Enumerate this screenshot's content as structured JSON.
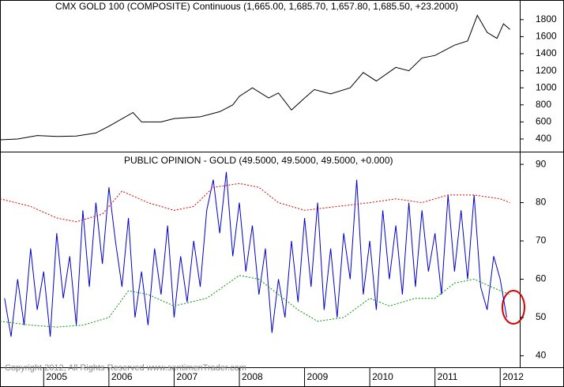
{
  "chart_data": [
    {
      "type": "line",
      "title": "CMX GOLD 100 (COMPOSITE) Continuous (1,665.00, 1,685.70, 1,657.80, 1,685.50, +23.2000)",
      "xlim": [
        2004.33,
        2012.3
      ],
      "ylim": [
        270,
        2030
      ],
      "yticks": [
        400,
        600,
        800,
        1000,
        1200,
        1400,
        1600,
        1800
      ],
      "series": [
        {
          "color": "#000000",
          "x": [
            2004.33,
            2004.6,
            2004.9,
            2005.2,
            2005.5,
            2005.8,
            2006.0,
            2006.37,
            2006.5,
            2006.8,
            2007.0,
            2007.4,
            2007.7,
            2007.9,
            2008.0,
            2008.2,
            2008.45,
            2008.6,
            2008.8,
            2009.0,
            2009.15,
            2009.4,
            2009.7,
            2009.9,
            2010.1,
            2010.4,
            2010.6,
            2010.8,
            2011.0,
            2011.3,
            2011.5,
            2011.65,
            2011.8,
            2011.95,
            2012.05,
            2012.15
          ],
          "values": [
            390,
            400,
            440,
            430,
            435,
            470,
            550,
            710,
            600,
            600,
            640,
            660,
            720,
            800,
            900,
            1000,
            880,
            940,
            740,
            880,
            980,
            930,
            1000,
            1180,
            1080,
            1240,
            1200,
            1350,
            1380,
            1500,
            1550,
            1850,
            1650,
            1580,
            1750,
            1685
          ]
        }
      ]
    },
    {
      "type": "line",
      "title": "PUBLIC OPINION - GOLD (49.5000, 49.5000, 49.5000, +0.000)",
      "xlim": [
        2004.33,
        2012.3
      ],
      "ylim": [
        37,
        92.7
      ],
      "yticks": [
        40,
        50,
        60,
        70,
        80,
        90
      ],
      "xticks": [
        2005,
        2006,
        2007,
        2008,
        2009,
        2010,
        2011,
        2012
      ],
      "series": [
        {
          "color": "#0000cc",
          "x": [
            2004.4,
            2004.5,
            2004.6,
            2004.7,
            2004.8,
            2004.9,
            2005.0,
            2005.1,
            2005.2,
            2005.3,
            2005.4,
            2005.5,
            2005.6,
            2005.7,
            2005.8,
            2005.9,
            2006.0,
            2006.1,
            2006.2,
            2006.3,
            2006.4,
            2006.5,
            2006.6,
            2006.7,
            2006.8,
            2006.9,
            2007.0,
            2007.1,
            2007.2,
            2007.3,
            2007.4,
            2007.5,
            2007.6,
            2007.7,
            2007.8,
            2007.9,
            2008.0,
            2008.1,
            2008.2,
            2008.3,
            2008.4,
            2008.5,
            2008.6,
            2008.7,
            2008.8,
            2008.9,
            2009.0,
            2009.1,
            2009.2,
            2009.3,
            2009.4,
            2009.5,
            2009.6,
            2009.7,
            2009.8,
            2009.9,
            2010.0,
            2010.1,
            2010.2,
            2010.3,
            2010.4,
            2010.5,
            2010.6,
            2010.7,
            2010.8,
            2010.9,
            2011.0,
            2011.1,
            2011.2,
            2011.3,
            2011.4,
            2011.5,
            2011.6,
            2011.7,
            2011.8,
            2011.9,
            2012.0,
            2012.1
          ],
          "values": [
            55,
            45,
            60,
            48,
            68,
            52,
            62,
            45,
            72,
            55,
            66,
            48,
            78,
            58,
            80,
            64,
            84,
            70,
            58,
            76,
            50,
            62,
            48,
            68,
            56,
            74,
            50,
            66,
            54,
            70,
            58,
            78,
            86,
            72,
            88,
            66,
            80,
            62,
            74,
            56,
            68,
            46,
            60,
            50,
            70,
            54,
            76,
            58,
            80,
            52,
            68,
            50,
            72,
            60,
            86,
            56,
            70,
            52,
            78,
            60,
            74,
            56,
            80,
            58,
            78,
            62,
            72,
            56,
            82,
            62,
            78,
            60,
            82,
            58,
            52,
            66,
            60,
            50
          ]
        },
        {
          "color": "#dd0000",
          "dashed": true,
          "x": [
            2004.33,
            2004.8,
            2005.2,
            2005.5,
            2005.9,
            2006.2,
            2006.6,
            2007.0,
            2007.3,
            2007.6,
            2008.0,
            2008.3,
            2008.6,
            2009.0,
            2009.5,
            2010.0,
            2010.4,
            2010.8,
            2011.2,
            2011.6,
            2012.0,
            2012.15
          ],
          "values": [
            81,
            79,
            76,
            75,
            77,
            83,
            80,
            78,
            79,
            84,
            85,
            84,
            80,
            78,
            79,
            80,
            81,
            80,
            82,
            82,
            81,
            80
          ]
        },
        {
          "color": "#009900",
          "dashed": true,
          "x": [
            2004.33,
            2004.8,
            2005.2,
            2005.6,
            2006.0,
            2006.3,
            2006.6,
            2007.0,
            2007.5,
            2008.0,
            2008.3,
            2008.6,
            2008.9,
            2009.2,
            2009.6,
            2010.0,
            2010.3,
            2010.7,
            2011.0,
            2011.3,
            2011.6,
            2012.0,
            2012.15
          ],
          "values": [
            49,
            48,
            47.5,
            48,
            50,
            57,
            56,
            53,
            55,
            61,
            60,
            56,
            52,
            49,
            50,
            55,
            53,
            55,
            55,
            59,
            60,
            57,
            56
          ]
        }
      ]
    }
  ],
  "footer": "Copyright 2012, All Rights Reserved  www.sentimenTrader.com"
}
